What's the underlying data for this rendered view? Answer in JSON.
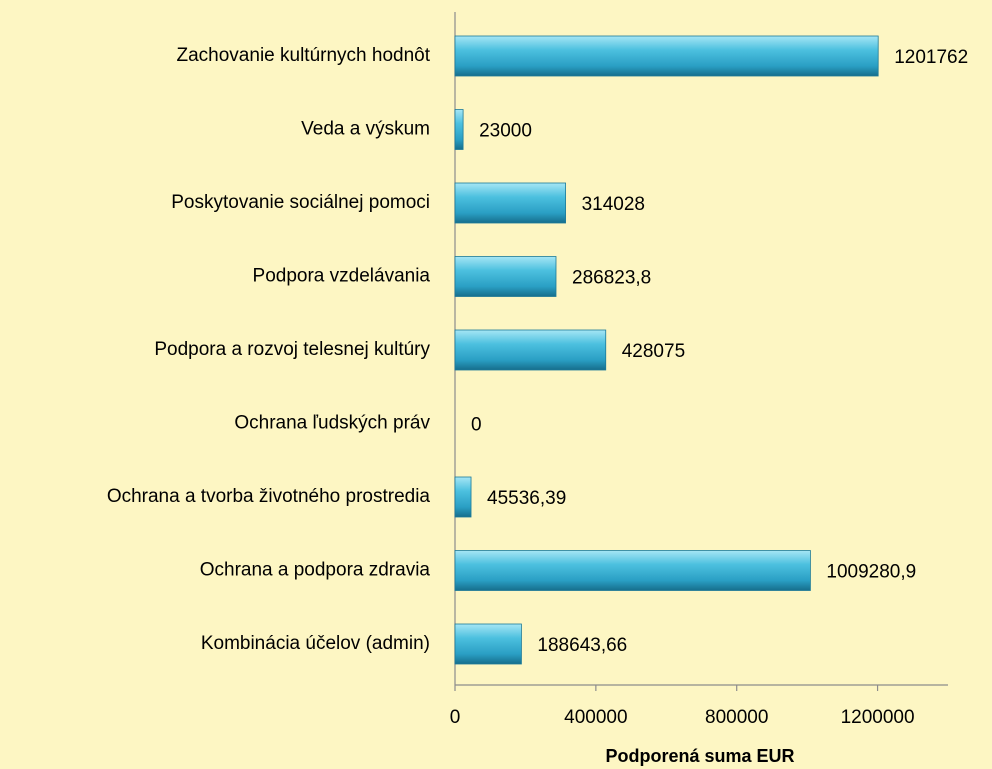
{
  "chart_data": {
    "type": "bar",
    "orientation": "horizontal",
    "x_label": "Podporená suma EUR",
    "categories": [
      "Zachovanie kultúrnych hodnôt",
      "Veda a výskum",
      "Poskytovanie sociálnej pomoci",
      "Podpora vzdelávania",
      "Podpora a rozvoj telesnej kultúry",
      "Ochrana ľudských práv",
      "Ochrana a tvorba životného prostredia",
      "Ochrana a podpora zdravia",
      "Kombinácia účelov (admin)"
    ],
    "values": [
      1201762,
      23000,
      314028,
      286823.8,
      428075,
      0,
      45536.39,
      1009280.9,
      188643.66
    ],
    "value_labels": [
      "1201762",
      "23000",
      "314028",
      "286823,8",
      "428075",
      "0",
      "45536,39",
      "1009280,9",
      "188643,66"
    ],
    "color": "#31aed2",
    "xlim": [
      0,
      1400000
    ],
    "xticks": [
      0,
      400000,
      800000,
      1200000
    ]
  }
}
